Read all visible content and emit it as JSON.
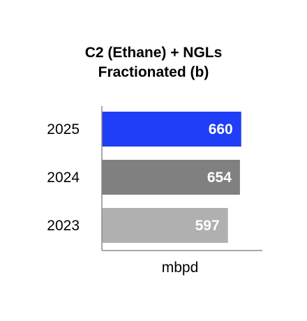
{
  "chart_data": {
    "type": "bar",
    "orientation": "horizontal",
    "title_lines": [
      "C2 (Ethane) + NGLs",
      "Fractionated (b)"
    ],
    "xlabel": "mbpd",
    "ylabel": "",
    "categories": [
      "2025",
      "2024",
      "2023"
    ],
    "values": [
      660,
      654,
      597
    ],
    "data_labels": [
      "660",
      "654",
      "597"
    ],
    "bar_colors": [
      "#1f3ef5",
      "#808080",
      "#b0b0b0"
    ],
    "xlim": [
      0,
      760
    ],
    "grid": false,
    "legend": "none"
  }
}
